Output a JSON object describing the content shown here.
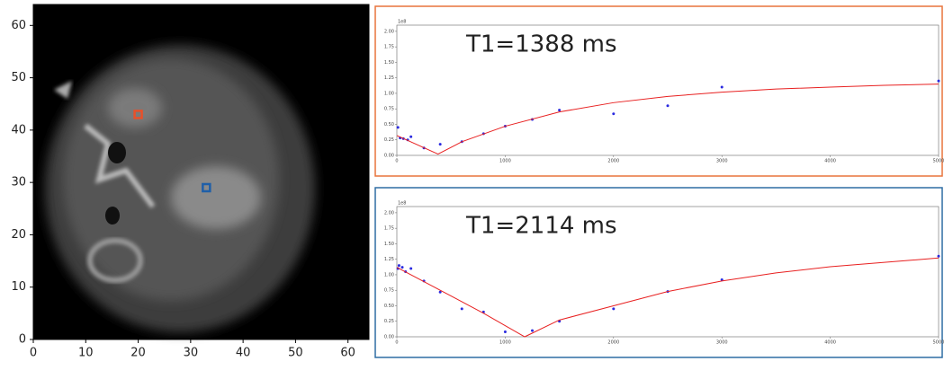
{
  "chart_data": [
    {
      "type": "image",
      "xlim": [
        0,
        64
      ],
      "ylim": [
        0,
        64
      ],
      "xticks": [
        0,
        10,
        20,
        30,
        40,
        50,
        60
      ],
      "yticks": [
        0,
        10,
        20,
        30,
        40,
        50,
        60
      ],
      "points": [
        {
          "x": 20,
          "y": 43,
          "color": "#e8502a"
        },
        {
          "x": 33,
          "y": 29,
          "color": "#1f5fa8"
        }
      ]
    },
    {
      "type": "scatter",
      "annotation": "T1=1388 ms",
      "y_exponent": "1e8",
      "frame_color": "#e8743b",
      "xlim": [
        0,
        5000
      ],
      "ylim": [
        0,
        2.1
      ],
      "xticks": [
        0,
        1000,
        2000,
        3000,
        4000,
        5000
      ],
      "yticks": [
        {
          "value": 0,
          "label": "0.00"
        },
        {
          "value": 0.25,
          "label": "0.25"
        },
        {
          "value": 0.5,
          "label": "0.50"
        },
        {
          "value": 0.75,
          "label": "0.75"
        },
        {
          "value": 1,
          "label": "1.00"
        },
        {
          "value": 1.25,
          "label": "1.25"
        },
        {
          "value": 1.5,
          "label": "1.50"
        },
        {
          "value": 1.75,
          "label": "1.75"
        },
        {
          "value": 2,
          "label": "2.00"
        }
      ],
      "series": [
        {
          "mode": "markers",
          "color": "#2a2ae0",
          "x": [
            10,
            30,
            60,
            100,
            130,
            250,
            400,
            600,
            800,
            1000,
            1250,
            1500,
            2000,
            2500,
            3000,
            5000
          ],
          "values": [
            0.45,
            0.28,
            0.27,
            0.25,
            0.3,
            0.12,
            0.18,
            0.22,
            0.35,
            0.47,
            0.58,
            0.73,
            0.67,
            0.8,
            1.1,
            1.2
          ]
        },
        {
          "mode": "line",
          "color": "#e82020",
          "x": [
            0,
            380,
            600,
            1000,
            1500,
            2000,
            2500,
            3000,
            3500,
            4000,
            4500,
            5000
          ],
          "values": [
            0.32,
            0.02,
            0.22,
            0.47,
            0.7,
            0.85,
            0.95,
            1.02,
            1.07,
            1.1,
            1.13,
            1.15
          ]
        }
      ]
    },
    {
      "type": "scatter",
      "annotation": "T1=2114 ms",
      "y_exponent": "1e8",
      "frame_color": "#2e6da4",
      "xlim": [
        0,
        5000
      ],
      "ylim": [
        0,
        2.1
      ],
      "xticks": [
        0,
        1000,
        2000,
        3000,
        4000,
        5000
      ],
      "yticks": [
        {
          "value": 0,
          "label": "0.00"
        },
        {
          "value": 0.25,
          "label": "0.25"
        },
        {
          "value": 0.5,
          "label": "0.50"
        },
        {
          "value": 0.75,
          "label": "0.75"
        },
        {
          "value": 1,
          "label": "1.00"
        },
        {
          "value": 1.25,
          "label": "1.25"
        },
        {
          "value": 1.5,
          "label": "1.50"
        },
        {
          "value": 1.75,
          "label": "1.75"
        },
        {
          "value": 2,
          "label": "2.00"
        }
      ],
      "series": [
        {
          "mode": "markers",
          "color": "#2a2ae0",
          "x": [
            10,
            20,
            50,
            80,
            130,
            250,
            400,
            600,
            800,
            1000,
            1250,
            1500,
            2000,
            2500,
            3000,
            5000
          ],
          "values": [
            1.1,
            1.15,
            1.12,
            1.05,
            1.1,
            0.9,
            0.72,
            0.45,
            0.4,
            0.08,
            0.1,
            0.25,
            0.45,
            0.73,
            0.92,
            1.3
          ]
        },
        {
          "mode": "line",
          "color": "#e82020",
          "x": [
            0,
            400,
            800,
            1180,
            1500,
            2000,
            2500,
            3000,
            3500,
            4000,
            4500,
            5000
          ],
          "values": [
            1.12,
            0.75,
            0.38,
            0,
            0.27,
            0.5,
            0.73,
            0.9,
            1.03,
            1.13,
            1.2,
            1.27
          ]
        }
      ]
    }
  ]
}
